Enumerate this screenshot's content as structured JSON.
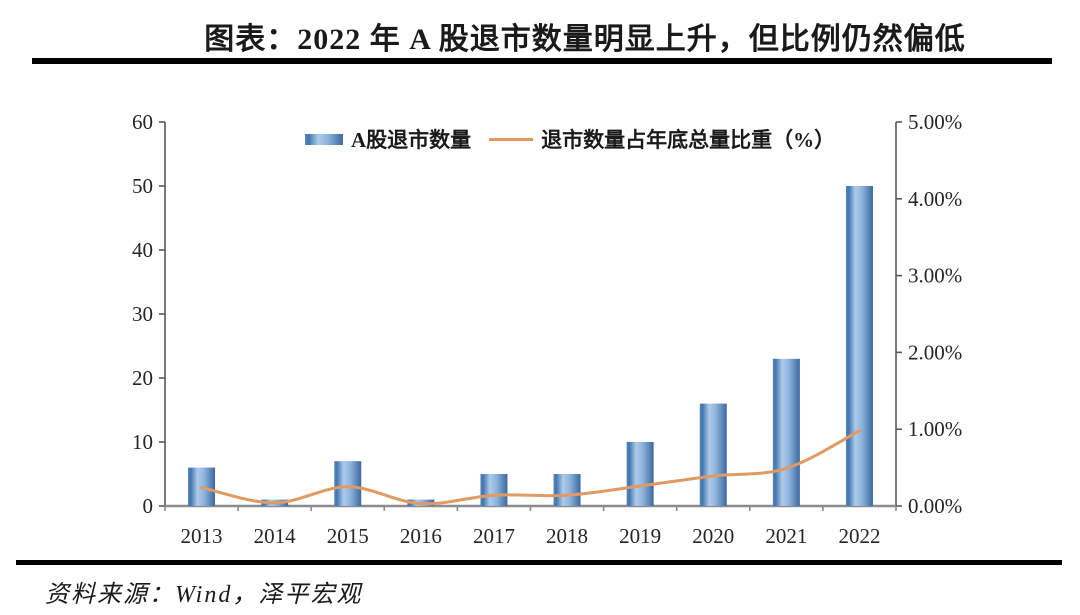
{
  "page": {
    "title": "图表：2022 年 A 股退市数量明显上升，但比例仍然偏低",
    "source": "资料来源：Wind，泽平宏观"
  },
  "colors": {
    "bar_edge": "#3f689d",
    "bar_mid": "#aecbe9",
    "bar_light": "#8db3db",
    "bar_dark": "#4376af",
    "line": "#e09a62",
    "axis_side": "#595959",
    "axis_bottom": "#8c8c8c",
    "rule": "#000000"
  },
  "chart_data": {
    "type": "bar",
    "subtype": "bar-line-combo",
    "categories": [
      "2013",
      "2014",
      "2015",
      "2016",
      "2017",
      "2018",
      "2019",
      "2020",
      "2021",
      "2022"
    ],
    "series": [
      {
        "name": "A股退市数量",
        "kind": "bar",
        "axis": "left",
        "values": [
          6,
          1,
          7,
          1,
          5,
          5,
          10,
          16,
          23,
          50
        ]
      },
      {
        "name": "退市数量占年底总量比重（%）",
        "kind": "line",
        "axis": "right",
        "values": [
          0.24,
          0.04,
          0.25,
          0.03,
          0.14,
          0.14,
          0.26,
          0.39,
          0.49,
          0.98
        ]
      }
    ],
    "left_axis": {
      "min": 0,
      "max": 60,
      "step": 10,
      "tick_labels": [
        "0",
        "10",
        "20",
        "30",
        "40",
        "50",
        "60"
      ]
    },
    "right_axis": {
      "min": 0,
      "max": 5,
      "step": 1,
      "tick_labels": [
        "0.00%",
        "1.00%",
        "2.00%",
        "3.00%",
        "4.00%",
        "5.00%"
      ]
    },
    "legend_position": "top",
    "grid": false,
    "title": "图表：2022 年 A 股退市数量明显上升，但比例仍然偏低",
    "xlabel": "",
    "ylabel_left": "",
    "ylabel_right": ""
  }
}
